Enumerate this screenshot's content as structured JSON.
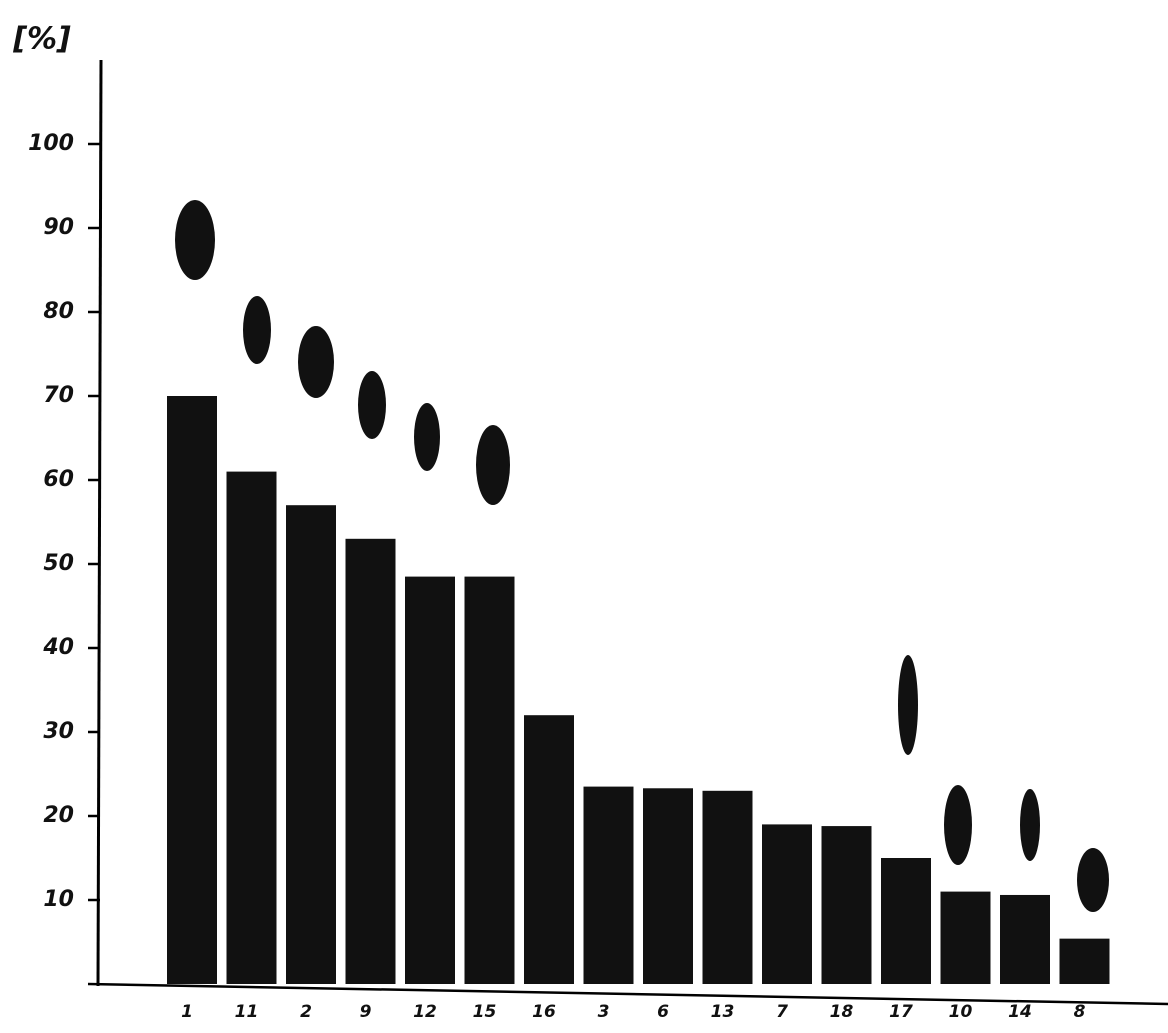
{
  "chart_data": {
    "type": "bar",
    "y_label": "[%]",
    "categories": [
      "1",
      "11",
      "2",
      "9",
      "12",
      "15",
      "16",
      "3",
      "6",
      "13",
      "7",
      "18",
      "17",
      "10",
      "14",
      "8"
    ],
    "values": [
      70,
      61,
      57,
      53,
      48.5,
      48.5,
      32,
      23.5,
      23.3,
      23,
      19,
      18.8,
      15,
      11,
      10.6,
      5.4
    ],
    "color": "#111111",
    "ylim": [
      0,
      110
    ],
    "yticks": [
      10,
      20,
      30,
      40,
      50,
      60,
      70,
      80,
      90,
      100
    ],
    "grid": false
  }
}
